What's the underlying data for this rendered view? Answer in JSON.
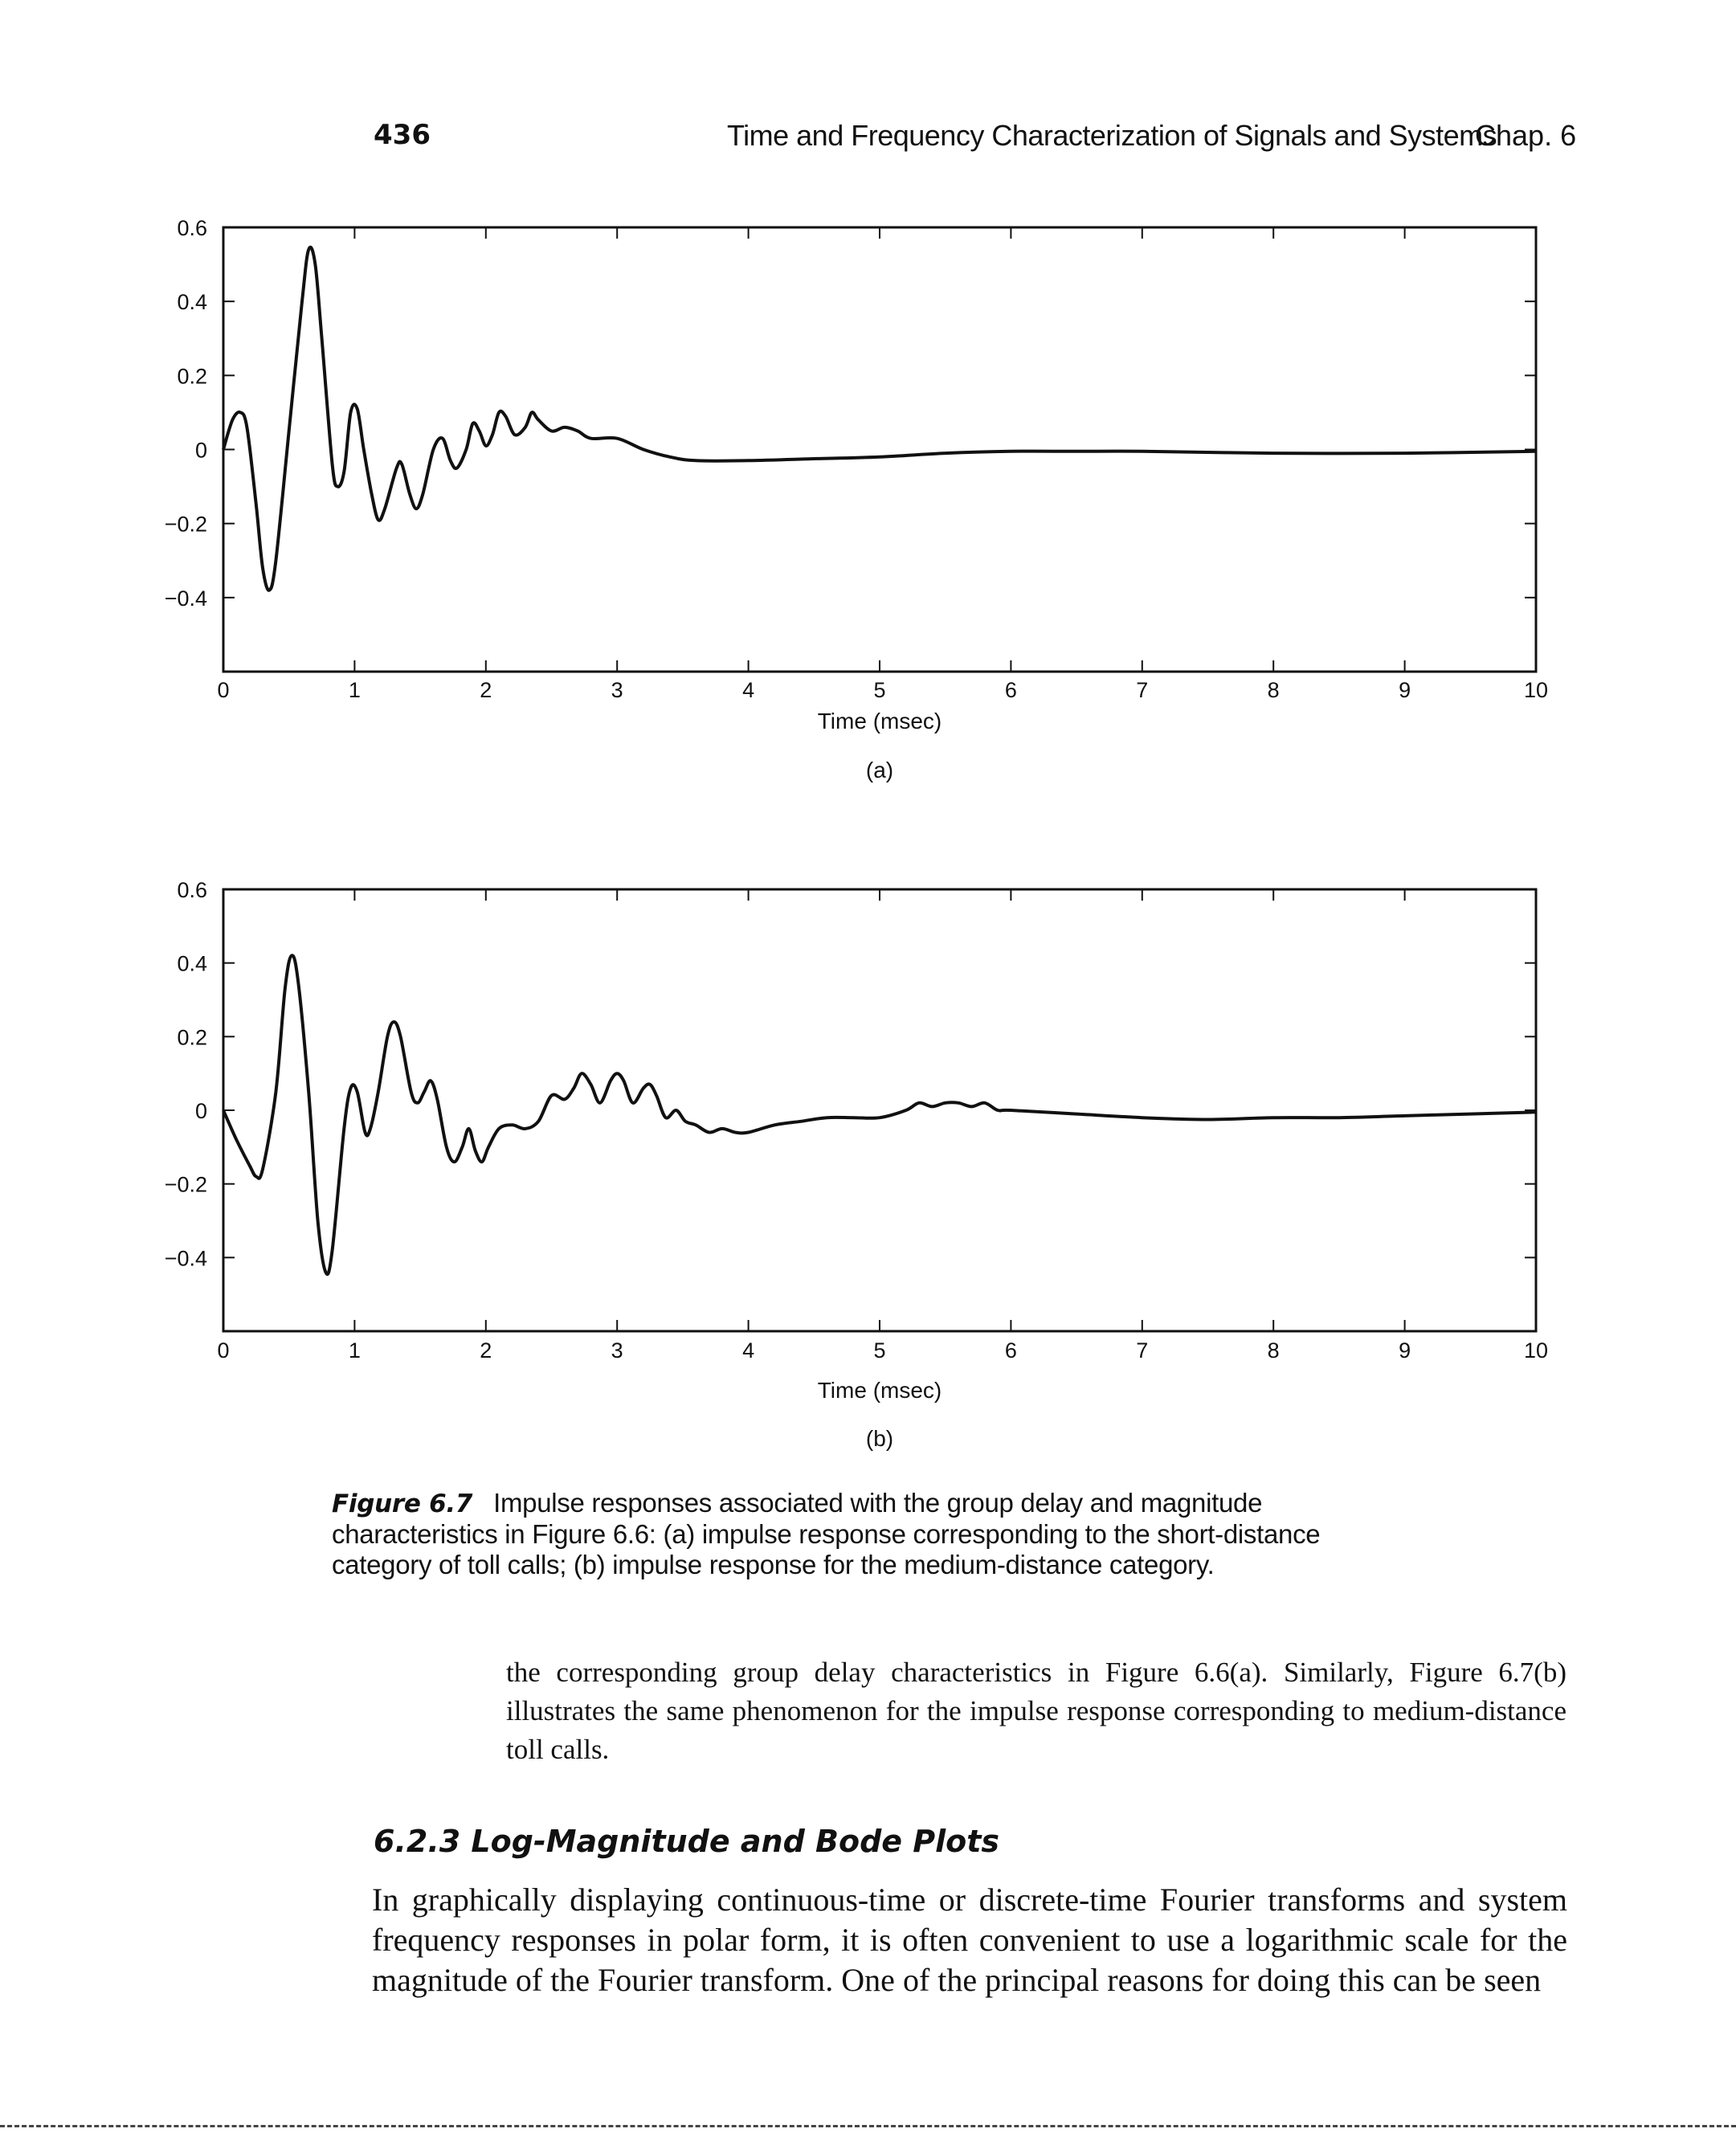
{
  "header": {
    "page_number": "436",
    "title": "Time and Frequency Characterization of Signals and Systems",
    "chapter": "Chap. 6"
  },
  "chart_data": [
    {
      "type": "line",
      "panel": "(a)",
      "xlabel": "Time (msec)",
      "xlim": [
        0,
        10
      ],
      "ylim": [
        -0.6,
        0.6
      ],
      "x_ticks": [
        "0",
        "1",
        "2",
        "3",
        "4",
        "5",
        "6",
        "7",
        "8",
        "9",
        "10"
      ],
      "y_ticks": [
        "0.6",
        "0.4",
        "0.2",
        "0",
        "−0.2",
        "−0.4"
      ],
      "series": [
        {
          "points": [
            [
              0,
              0
            ],
            [
              0.07,
              0.08
            ],
            [
              0.13,
              0.1
            ],
            [
              0.18,
              0.06
            ],
            [
              0.25,
              -0.15
            ],
            [
              0.3,
              -0.32
            ],
            [
              0.35,
              -0.38
            ],
            [
              0.4,
              -0.3
            ],
            [
              0.5,
              0.05
            ],
            [
              0.6,
              0.4
            ],
            [
              0.65,
              0.54
            ],
            [
              0.7,
              0.5
            ],
            [
              0.75,
              0.3
            ],
            [
              0.83,
              -0.04
            ],
            [
              0.87,
              -0.1
            ],
            [
              0.92,
              -0.06
            ],
            [
              0.97,
              0.1
            ],
            [
              1.02,
              0.11
            ],
            [
              1.07,
              0.0
            ],
            [
              1.13,
              -0.12
            ],
            [
              1.18,
              -0.19
            ],
            [
              1.23,
              -0.16
            ],
            [
              1.32,
              -0.05
            ],
            [
              1.36,
              -0.04
            ],
            [
              1.42,
              -0.12
            ],
            [
              1.47,
              -0.16
            ],
            [
              1.52,
              -0.12
            ],
            [
              1.6,
              0.0
            ],
            [
              1.67,
              0.03
            ],
            [
              1.73,
              -0.03
            ],
            [
              1.78,
              -0.05
            ],
            [
              1.85,
              0.0
            ],
            [
              1.9,
              0.07
            ],
            [
              1.95,
              0.05
            ],
            [
              2.0,
              0.01
            ],
            [
              2.05,
              0.04
            ],
            [
              2.1,
              0.1
            ],
            [
              2.15,
              0.09
            ],
            [
              2.22,
              0.04
            ],
            [
              2.3,
              0.06
            ],
            [
              2.35,
              0.1
            ],
            [
              2.4,
              0.08
            ],
            [
              2.5,
              0.05
            ],
            [
              2.6,
              0.06
            ],
            [
              2.7,
              0.05
            ],
            [
              2.8,
              0.03
            ],
            [
              3.0,
              0.03
            ],
            [
              3.2,
              0.0
            ],
            [
              3.4,
              -0.02
            ],
            [
              3.6,
              -0.03
            ],
            [
              4.0,
              -0.03
            ],
            [
              4.5,
              -0.025
            ],
            [
              5.0,
              -0.02
            ],
            [
              5.5,
              -0.01
            ],
            [
              6.0,
              -0.005
            ],
            [
              6.5,
              -0.005
            ],
            [
              7.0,
              -0.005
            ],
            [
              8.0,
              -0.01
            ],
            [
              9.0,
              -0.01
            ],
            [
              10.0,
              -0.005
            ]
          ]
        }
      ]
    },
    {
      "type": "line",
      "panel": "(b)",
      "xlabel": "Time (msec)",
      "xlim": [
        0,
        10
      ],
      "ylim": [
        -0.6,
        0.6
      ],
      "x_ticks": [
        "0",
        "1",
        "2",
        "3",
        "4",
        "5",
        "6",
        "7",
        "8",
        "9",
        "10"
      ],
      "y_ticks": [
        "0.6",
        "0.4",
        "0.2",
        "0",
        "−0.2",
        "−0.4"
      ],
      "series": [
        {
          "points": [
            [
              0,
              0
            ],
            [
              0.1,
              -0.08
            ],
            [
              0.2,
              -0.15
            ],
            [
              0.25,
              -0.18
            ],
            [
              0.3,
              -0.16
            ],
            [
              0.4,
              0.05
            ],
            [
              0.47,
              0.33
            ],
            [
              0.52,
              0.42
            ],
            [
              0.57,
              0.35
            ],
            [
              0.65,
              0.05
            ],
            [
              0.72,
              -0.3
            ],
            [
              0.78,
              -0.44
            ],
            [
              0.83,
              -0.38
            ],
            [
              0.92,
              -0.05
            ],
            [
              0.97,
              0.06
            ],
            [
              1.02,
              0.05
            ],
            [
              1.08,
              -0.06
            ],
            [
              1.12,
              -0.05
            ],
            [
              1.18,
              0.05
            ],
            [
              1.25,
              0.2
            ],
            [
              1.3,
              0.24
            ],
            [
              1.35,
              0.2
            ],
            [
              1.43,
              0.05
            ],
            [
              1.48,
              0.02
            ],
            [
              1.53,
              0.05
            ],
            [
              1.58,
              0.08
            ],
            [
              1.63,
              0.03
            ],
            [
              1.7,
              -0.1
            ],
            [
              1.76,
              -0.14
            ],
            [
              1.82,
              -0.1
            ],
            [
              1.87,
              -0.05
            ],
            [
              1.92,
              -0.11
            ],
            [
              1.97,
              -0.14
            ],
            [
              2.02,
              -0.1
            ],
            [
              2.1,
              -0.05
            ],
            [
              2.2,
              -0.04
            ],
            [
              2.3,
              -0.05
            ],
            [
              2.4,
              -0.03
            ],
            [
              2.5,
              0.04
            ],
            [
              2.6,
              0.03
            ],
            [
              2.67,
              0.06
            ],
            [
              2.73,
              0.1
            ],
            [
              2.8,
              0.07
            ],
            [
              2.87,
              0.02
            ],
            [
              2.95,
              0.08
            ],
            [
              3.0,
              0.1
            ],
            [
              3.05,
              0.08
            ],
            [
              3.12,
              0.02
            ],
            [
              3.2,
              0.06
            ],
            [
              3.25,
              0.07
            ],
            [
              3.3,
              0.04
            ],
            [
              3.37,
              -0.02
            ],
            [
              3.45,
              0.0
            ],
            [
              3.52,
              -0.03
            ],
            [
              3.6,
              -0.04
            ],
            [
              3.7,
              -0.06
            ],
            [
              3.8,
              -0.05
            ],
            [
              3.9,
              -0.06
            ],
            [
              4.0,
              -0.06
            ],
            [
              4.2,
              -0.04
            ],
            [
              4.4,
              -0.03
            ],
            [
              4.6,
              -0.02
            ],
            [
              4.8,
              -0.02
            ],
            [
              5.0,
              -0.02
            ],
            [
              5.2,
              0.0
            ],
            [
              5.3,
              0.02
            ],
            [
              5.4,
              0.01
            ],
            [
              5.5,
              0.02
            ],
            [
              5.6,
              0.02
            ],
            [
              5.7,
              0.01
            ],
            [
              5.8,
              0.02
            ],
            [
              5.9,
              0.0
            ],
            [
              6.0,
              0.0
            ],
            [
              6.5,
              -0.01
            ],
            [
              7.0,
              -0.02
            ],
            [
              7.5,
              -0.025
            ],
            [
              8.0,
              -0.02
            ],
            [
              8.5,
              -0.02
            ],
            [
              9.0,
              -0.015
            ],
            [
              9.5,
              -0.01
            ],
            [
              10.0,
              -0.005
            ]
          ]
        }
      ]
    }
  ],
  "caption": {
    "label": "Figure 6.7",
    "text": "Impulse responses associated with the group delay and magnitude characteristics in Figure 6.6: (a) impulse response corresponding to the short-distance category of toll calls; (b) impulse response for the medium-distance category."
  },
  "body": {
    "paragraph1": "the corresponding group delay characteristics in Figure 6.6(a). Similarly, Figure 6.7(b) illustrates the same phenomenon for the impulse response corresponding to medium-distance toll calls.",
    "section_title": "6.2.3 Log-Magnitude and Bode Plots",
    "paragraph2": "In graphically displaying continuous-time or discrete-time Fourier transforms and system frequency responses in polar form, it is often convenient to use a logarithmic scale for the magnitude of the Fourier transform. One of the principal reasons for doing this can be seen"
  }
}
